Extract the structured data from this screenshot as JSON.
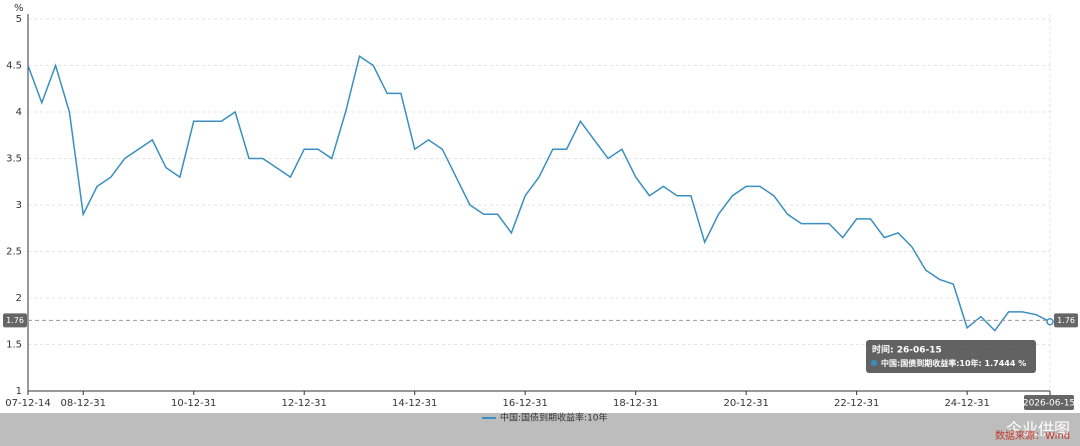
{
  "chart_data": {
    "type": "line",
    "y_unit_label": "%",
    "categories": [
      "07-12-14",
      null,
      null,
      null,
      "08-12-31",
      null,
      null,
      null,
      null,
      null,
      null,
      null,
      "10-12-31",
      null,
      null,
      null,
      null,
      null,
      null,
      null,
      "12-12-31",
      null,
      null,
      null,
      null,
      null,
      null,
      null,
      "14-12-31",
      null,
      null,
      null,
      null,
      null,
      null,
      null,
      "16-12-31",
      null,
      null,
      null,
      null,
      null,
      null,
      null,
      "18-12-31",
      null,
      null,
      null,
      null,
      null,
      null,
      null,
      "20-12-31",
      null,
      null,
      null,
      null,
      null,
      null,
      null,
      "22-12-31",
      null,
      null,
      null,
      null,
      null,
      null,
      null,
      "24-12-31",
      null,
      null,
      null,
      null,
      null,
      "2026-06-15"
    ],
    "series": [
      {
        "name": "中国:国债到期收益率:10年",
        "color": "#3a8fc0",
        "values": [
          4.5,
          4.1,
          4.5,
          4.0,
          2.9,
          3.2,
          3.3,
          3.5,
          3.6,
          3.7,
          3.4,
          3.3,
          3.9,
          3.9,
          3.9,
          4.0,
          3.5,
          3.5,
          3.4,
          3.3,
          3.6,
          3.6,
          3.5,
          4.0,
          4.6,
          4.5,
          4.2,
          4.2,
          3.6,
          3.7,
          3.6,
          3.3,
          3.0,
          2.9,
          2.9,
          2.7,
          3.1,
          3.3,
          3.6,
          3.6,
          3.9,
          3.7,
          3.5,
          3.6,
          3.3,
          3.1,
          3.2,
          3.1,
          3.1,
          2.6,
          2.9,
          3.1,
          3.2,
          3.2,
          3.1,
          2.9,
          2.8,
          2.8,
          2.8,
          2.65,
          2.85,
          2.85,
          2.65,
          2.7,
          2.55,
          2.3,
          2.2,
          2.15,
          1.68,
          1.8,
          1.65,
          1.85,
          1.85,
          1.82,
          1.7444
        ]
      }
    ],
    "ylim": [
      1,
      5
    ],
    "yticks": [
      1,
      1.5,
      2,
      2.5,
      3,
      3.5,
      4,
      4.5,
      5
    ],
    "grid": true,
    "crosshair": 1.76,
    "tooltip": {
      "title": "时间: 26-06-15",
      "unit": "%"
    },
    "watermark": "企业供图",
    "source": "数据来源：Wind"
  }
}
